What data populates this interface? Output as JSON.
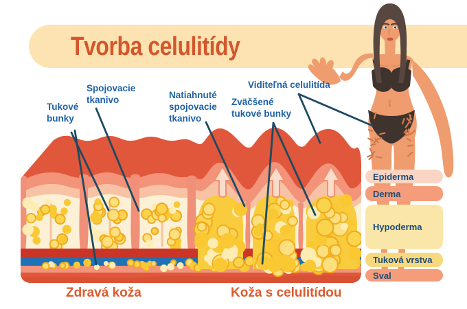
{
  "title": "Tvorba celulitídy",
  "callouts": [
    {
      "id": "tukove-bunky",
      "label": "Tukové bunky"
    },
    {
      "id": "spojovacie-tkanivo",
      "label": "Spojovacie tkanivo"
    },
    {
      "id": "natiahnute-spojovacie-tkanivo",
      "label": "Natiahnuté spojovacie tkanivo"
    },
    {
      "id": "zvacsene-tukove-bunky",
      "label": "Zväčšené tukové bunky"
    },
    {
      "id": "viditelna-celulitida",
      "label": "Viditeľná celulitída"
    }
  ],
  "skin_layers": [
    {
      "label": "Epiderma",
      "color": "#FBD5C3"
    },
    {
      "label": "Derma",
      "color": "#F59D7B"
    },
    {
      "label": "Hypoderma",
      "color": "#FAE6A9"
    },
    {
      "label": "Tuková vrstva",
      "color": "#F8D87E"
    },
    {
      "label": "Sval",
      "color": "#F59D7B"
    }
  ],
  "captions": {
    "healthy": "Zdravá koža",
    "cellulite": "Koža s celulitídou"
  },
  "colors": {
    "title": "#D4562B",
    "banner": "#FCE3B1",
    "callout_text": "#2062A7",
    "pointer_line": "#1D4A62",
    "legend_text": "#1B4B78",
    "caption": "#DD5B2E"
  }
}
